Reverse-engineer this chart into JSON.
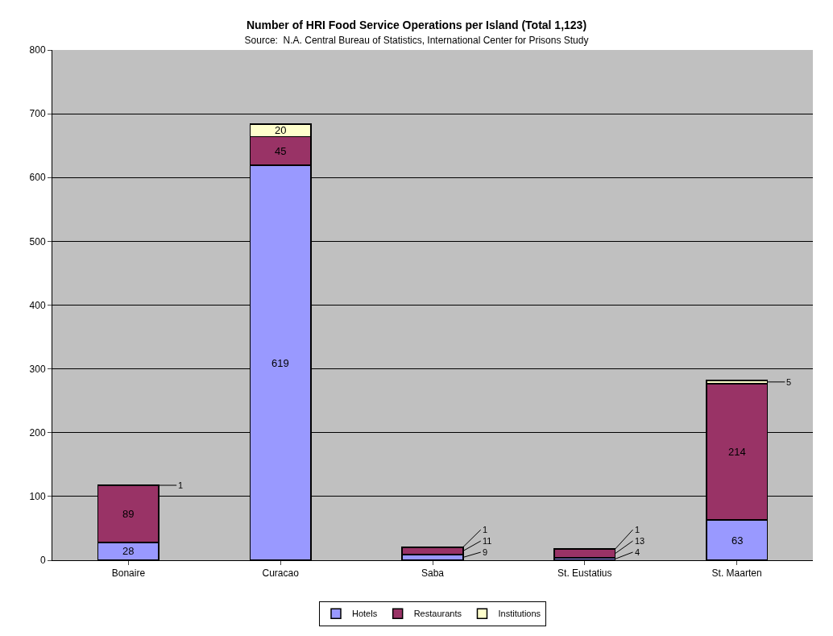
{
  "chart_data": {
    "type": "bar",
    "stacked": true,
    "title": "Number of HRI Food Service Operations per Island (Total 1,123)",
    "subtitle": "Source:  N.A. Central Bureau of Statistics, International Center for Prisons Study",
    "categories": [
      "Bonaire",
      "Curacao",
      "Saba",
      "St. Eustatius",
      "St. Maarten"
    ],
    "series": [
      {
        "name": "Hotels",
        "color": "#9999ff",
        "values": [
          28,
          619,
          9,
          4,
          63
        ]
      },
      {
        "name": "Restaurants",
        "color": "#993366",
        "values": [
          89,
          45,
          11,
          13,
          214
        ]
      },
      {
        "name": "Institutions",
        "color": "#ffffcc",
        "values": [
          1,
          20,
          1,
          1,
          5
        ]
      }
    ],
    "ylim": [
      0,
      800
    ],
    "yticks": [
      0,
      100,
      200,
      300,
      400,
      500,
      600,
      700,
      800
    ],
    "grid": "y",
    "legend": "bottom",
    "data_labels": true
  }
}
